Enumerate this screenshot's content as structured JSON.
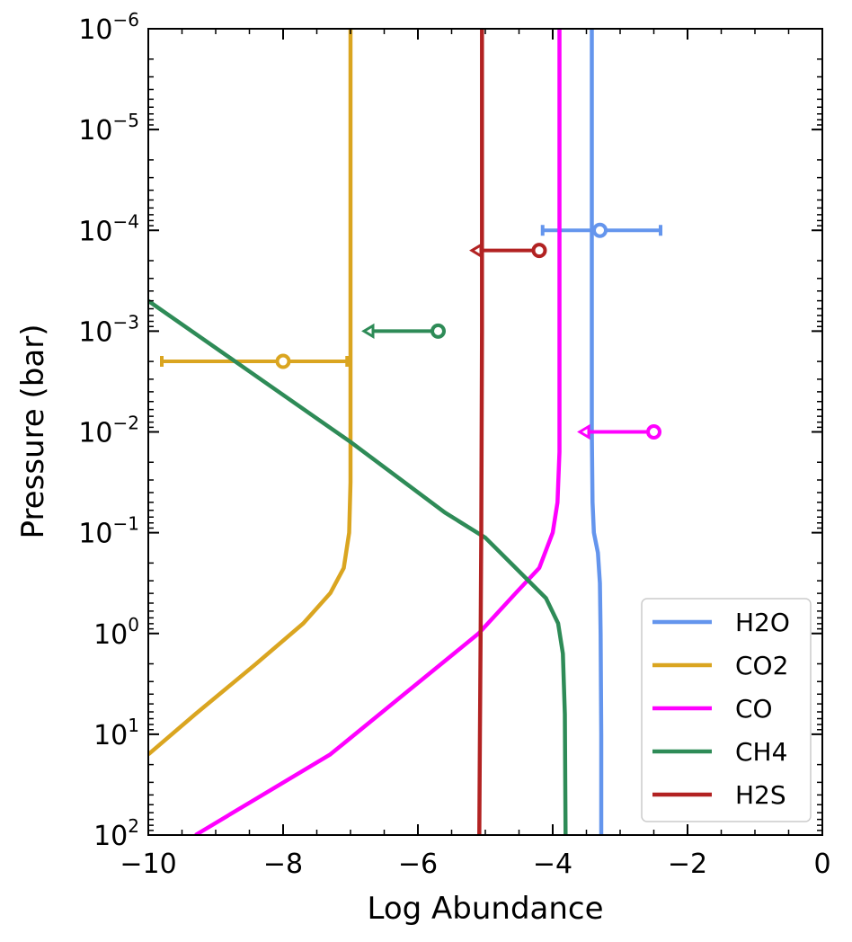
{
  "chart_data": {
    "type": "line",
    "xlabel": "Log Abundance",
    "ylabel": "Pressure (bar)",
    "xlim": [
      -10,
      0
    ],
    "ylim_log10": [
      2,
      -6
    ],
    "y_scale": "log",
    "y_inverted": true,
    "x_ticks": [
      {
        "value": -10,
        "label": "−10"
      },
      {
        "value": -8,
        "label": "−8"
      },
      {
        "value": -6,
        "label": "−6"
      },
      {
        "value": -4,
        "label": "−4"
      },
      {
        "value": -2,
        "label": "−2"
      },
      {
        "value": 0,
        "label": "0"
      }
    ],
    "y_ticks": [
      {
        "value": -6,
        "base": "10",
        "exp": "−6"
      },
      {
        "value": -5,
        "base": "10",
        "exp": "−5"
      },
      {
        "value": -4,
        "base": "10",
        "exp": "−4"
      },
      {
        "value": -3,
        "base": "10",
        "exp": "−3"
      },
      {
        "value": -2,
        "base": "10",
        "exp": "−2"
      },
      {
        "value": -1,
        "base": "10",
        "exp": "−1"
      },
      {
        "value": 0,
        "base": "10",
        "exp": "0"
      },
      {
        "value": 1,
        "base": "10",
        "exp": "1"
      },
      {
        "value": 2,
        "base": "10",
        "exp": "2"
      }
    ],
    "legend_position": "bottom-right",
    "grid": false,
    "series": [
      {
        "name": "H2O",
        "color": "#6495ed",
        "points": [
          [
            -3.42,
            -6
          ],
          [
            -3.42,
            -2
          ],
          [
            -3.41,
            -1.3
          ],
          [
            -3.39,
            -1.0
          ],
          [
            -3.33,
            -0.8
          ],
          [
            -3.3,
            -0.5
          ],
          [
            -3.29,
            0
          ],
          [
            -3.28,
            1
          ],
          [
            -3.28,
            2
          ]
        ],
        "retrieval": {
          "x": -3.3,
          "y_log10": -4.0,
          "xerr_low": -4.15,
          "xerr_high": -2.4,
          "upper_limit": false
        }
      },
      {
        "name": "CO2",
        "color": "#daa520",
        "points": [
          [
            -7.0,
            -6
          ],
          [
            -7.0,
            -1.5
          ],
          [
            -7.02,
            -1.0
          ],
          [
            -7.1,
            -0.65
          ],
          [
            -7.3,
            -0.4
          ],
          [
            -7.7,
            -0.1
          ],
          [
            -8.4,
            0.3
          ],
          [
            -9.3,
            0.8
          ],
          [
            -10.0,
            1.2
          ]
        ],
        "retrieval": {
          "x": -8.0,
          "y_log10": -2.7,
          "xerr_low": -9.8,
          "xerr_high": -7.05,
          "upper_limit": false
        }
      },
      {
        "name": "CO",
        "color": "#ff00ff",
        "points": [
          [
            -3.9,
            -6
          ],
          [
            -3.9,
            -1.8
          ],
          [
            -3.93,
            -1.3
          ],
          [
            -4.0,
            -1.0
          ],
          [
            -4.2,
            -0.65
          ],
          [
            -4.55,
            -0.4
          ],
          [
            -5.1,
            0
          ],
          [
            -6.2,
            0.6
          ],
          [
            -7.3,
            1.2
          ],
          [
            -9.3,
            2.0
          ]
        ],
        "retrieval": {
          "x": -2.5,
          "y_log10": -2.0,
          "limit_to": -3.6,
          "upper_limit": true
        }
      },
      {
        "name": "CH4",
        "color": "#2e8b57",
        "points": [
          [
            -10.0,
            -3.3
          ],
          [
            -8.5,
            -2.6
          ],
          [
            -7.0,
            -1.9
          ],
          [
            -5.6,
            -1.2
          ],
          [
            -5.0,
            -0.95
          ],
          [
            -4.55,
            -0.65
          ],
          [
            -4.1,
            -0.35
          ],
          [
            -3.92,
            -0.1
          ],
          [
            -3.85,
            0.2
          ],
          [
            -3.82,
            0.8
          ],
          [
            -3.81,
            2.0
          ]
        ],
        "retrieval": {
          "x": -5.7,
          "y_log10": -3.0,
          "limit_to": -6.8,
          "upper_limit": true
        }
      },
      {
        "name": "H2S",
        "color": "#b22222",
        "points": [
          [
            -5.05,
            -6
          ],
          [
            -5.05,
            -3
          ],
          [
            -5.06,
            -1
          ],
          [
            -5.07,
            0
          ],
          [
            -5.08,
            1
          ],
          [
            -5.09,
            2
          ]
        ],
        "retrieval": {
          "x": -4.2,
          "y_log10": -3.8,
          "limit_to": -5.2,
          "upper_limit": true
        }
      }
    ]
  }
}
